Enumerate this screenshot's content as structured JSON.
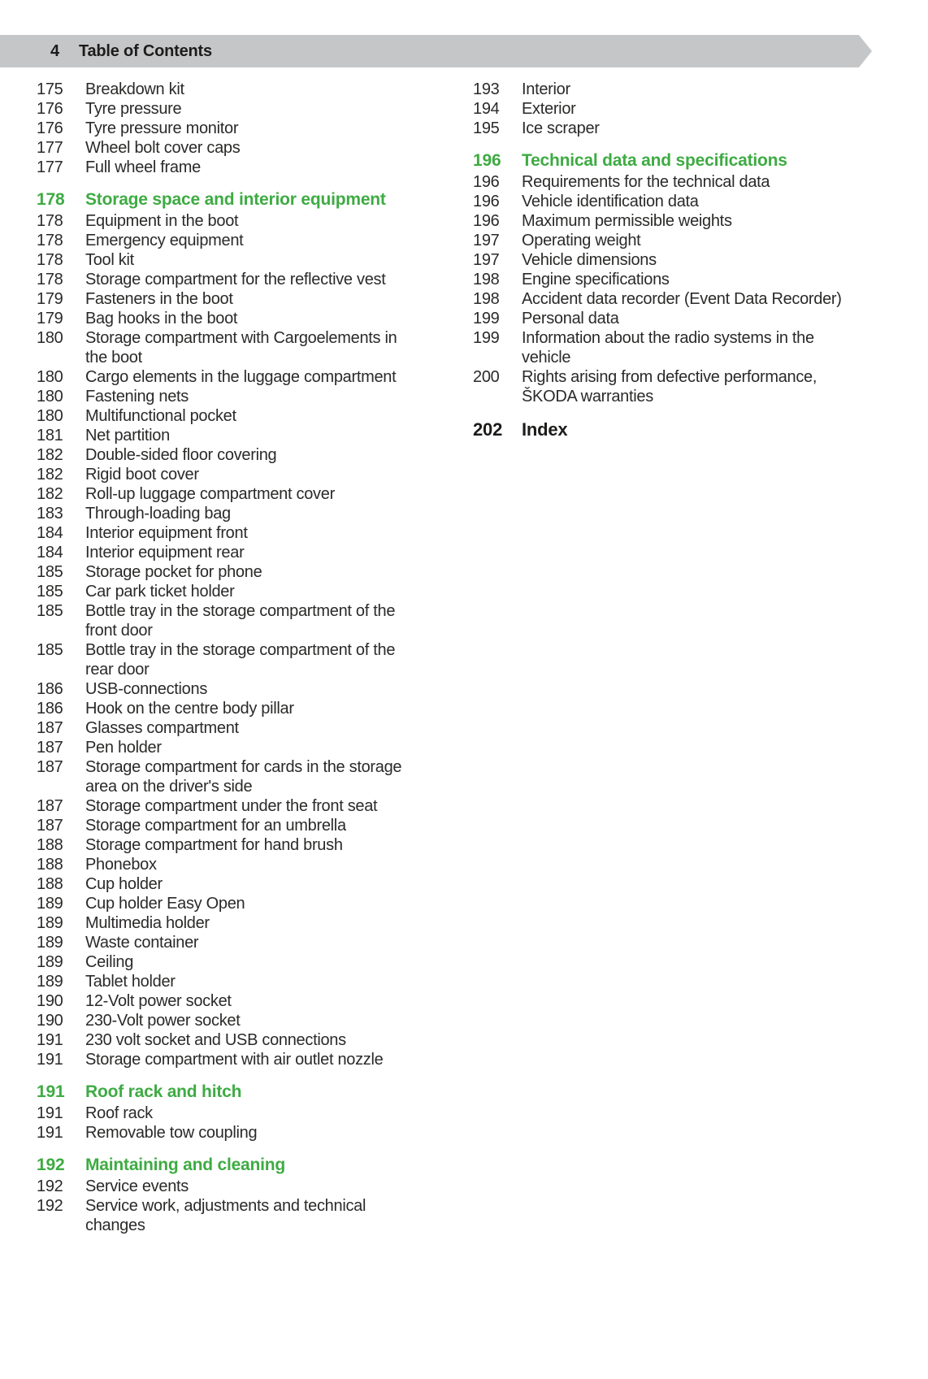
{
  "header": {
    "page_number": "4",
    "title": "Table of Contents"
  },
  "colors": {
    "accent_green": "#3eab43",
    "header_bg": "#c5c6c8",
    "text_color": "#2b2a29"
  },
  "columns": {
    "left": [
      {
        "page": "175",
        "label": "Breakdown kit",
        "type": "item"
      },
      {
        "page": "176",
        "label": "Tyre pressure",
        "type": "item"
      },
      {
        "page": "176",
        "label": "Tyre pressure monitor",
        "type": "item"
      },
      {
        "page": "177",
        "label": "Wheel bolt cover caps",
        "type": "item"
      },
      {
        "page": "177",
        "label": "Full wheel frame",
        "type": "item"
      },
      {
        "page": "178",
        "label": "Storage space and interior equipment",
        "type": "section"
      },
      {
        "page": "178",
        "label": "Equipment in the boot",
        "type": "item"
      },
      {
        "page": "178",
        "label": "Emergency equipment",
        "type": "item"
      },
      {
        "page": "178",
        "label": "Tool kit",
        "type": "item"
      },
      {
        "page": "178",
        "label": "Storage compartment for the reflective vest",
        "type": "item"
      },
      {
        "page": "179",
        "label": "Fasteners in the boot",
        "type": "item"
      },
      {
        "page": "179",
        "label": "Bag hooks in the boot",
        "type": "item"
      },
      {
        "page": "180",
        "label": "Storage compartment with Cargoelements in\nthe boot",
        "type": "item"
      },
      {
        "page": "180",
        "label": "Cargo elements in the luggage compartment",
        "type": "item"
      },
      {
        "page": "180",
        "label": "Fastening nets",
        "type": "item"
      },
      {
        "page": "180",
        "label": "Multifunctional pocket",
        "type": "item"
      },
      {
        "page": "181",
        "label": "Net partition",
        "type": "item"
      },
      {
        "page": "182",
        "label": "Double-sided floor covering",
        "type": "item"
      },
      {
        "page": "182",
        "label": "Rigid boot cover",
        "type": "item"
      },
      {
        "page": "182",
        "label": "Roll-up luggage compartment cover",
        "type": "item"
      },
      {
        "page": "183",
        "label": "Through-loading bag",
        "type": "item"
      },
      {
        "page": "184",
        "label": "Interior equipment front",
        "type": "item"
      },
      {
        "page": "184",
        "label": "Interior equipment rear",
        "type": "item"
      },
      {
        "page": "185",
        "label": "Storage pocket for phone",
        "type": "item"
      },
      {
        "page": "185",
        "label": "Car park ticket holder",
        "type": "item"
      },
      {
        "page": "185",
        "label": "Bottle tray in the storage compartment of the\nfront door",
        "type": "item"
      },
      {
        "page": "185",
        "label": "Bottle tray in the storage compartment of the\nrear door",
        "type": "item"
      },
      {
        "page": "186",
        "label": "USB-connections",
        "type": "item"
      },
      {
        "page": "186",
        "label": "Hook on the centre body pillar",
        "type": "item"
      },
      {
        "page": "187",
        "label": "Glasses compartment",
        "type": "item"
      },
      {
        "page": "187",
        "label": "Pen holder",
        "type": "item"
      },
      {
        "page": "187",
        "label": "Storage compartment for cards in the storage\narea on the driver's side",
        "type": "item"
      },
      {
        "page": "187",
        "label": "Storage compartment under the front seat",
        "type": "item"
      },
      {
        "page": "187",
        "label": "Storage compartment for an umbrella",
        "type": "item"
      },
      {
        "page": "188",
        "label": "Storage compartment for hand brush",
        "type": "item"
      },
      {
        "page": "188",
        "label": "Phonebox",
        "type": "item"
      },
      {
        "page": "188",
        "label": "Cup holder",
        "type": "item"
      },
      {
        "page": "189",
        "label": "Cup holder Easy Open",
        "type": "item"
      },
      {
        "page": "189",
        "label": "Multimedia holder",
        "type": "item"
      },
      {
        "page": "189",
        "label": "Waste container",
        "type": "item"
      },
      {
        "page": "189",
        "label": "Ceiling",
        "type": "item"
      },
      {
        "page": "189",
        "label": "Tablet holder",
        "type": "item"
      },
      {
        "page": "190",
        "label": "12-Volt power socket",
        "type": "item"
      },
      {
        "page": "190",
        "label": "230-Volt power socket",
        "type": "item"
      },
      {
        "page": "191",
        "label": "230 volt socket and USB connections",
        "type": "item"
      },
      {
        "page": "191",
        "label": "Storage compartment with air outlet nozzle",
        "type": "item"
      },
      {
        "page": "191",
        "label": "Roof rack and hitch",
        "type": "section"
      },
      {
        "page": "191",
        "label": "Roof rack",
        "type": "item"
      },
      {
        "page": "191",
        "label": "Removable tow coupling",
        "type": "item"
      },
      {
        "page": "192",
        "label": "Maintaining and cleaning",
        "type": "section"
      },
      {
        "page": "192",
        "label": "Service events",
        "type": "item"
      },
      {
        "page": "192",
        "label": "Service work, adjustments and technical\nchanges",
        "type": "item"
      }
    ],
    "right": [
      {
        "page": "193",
        "label": "Interior",
        "type": "item"
      },
      {
        "page": "194",
        "label": "Exterior",
        "type": "item"
      },
      {
        "page": "195",
        "label": "Ice scraper",
        "type": "item"
      },
      {
        "page": "196",
        "label": "Technical data and specifications",
        "type": "section"
      },
      {
        "page": "196",
        "label": "Requirements for the technical data",
        "type": "item"
      },
      {
        "page": "196",
        "label": "Vehicle identification data",
        "type": "item"
      },
      {
        "page": "196",
        "label": "Maximum permissible weights",
        "type": "item"
      },
      {
        "page": "197",
        "label": "Operating weight",
        "type": "item"
      },
      {
        "page": "197",
        "label": "Vehicle dimensions",
        "type": "item"
      },
      {
        "page": "198",
        "label": "Engine specifications",
        "type": "item"
      },
      {
        "page": "198",
        "label": "Accident data recorder (Event Data Recorder)",
        "type": "item"
      },
      {
        "page": "199",
        "label": "Personal data",
        "type": "item"
      },
      {
        "page": "199",
        "label": "Information about the radio systems in the\nvehicle",
        "type": "item"
      },
      {
        "page": "200",
        "label": "Rights arising from defective performance,\nŠKODA warranties",
        "type": "item"
      },
      {
        "page": "202",
        "label": "Index",
        "type": "index"
      }
    ]
  }
}
